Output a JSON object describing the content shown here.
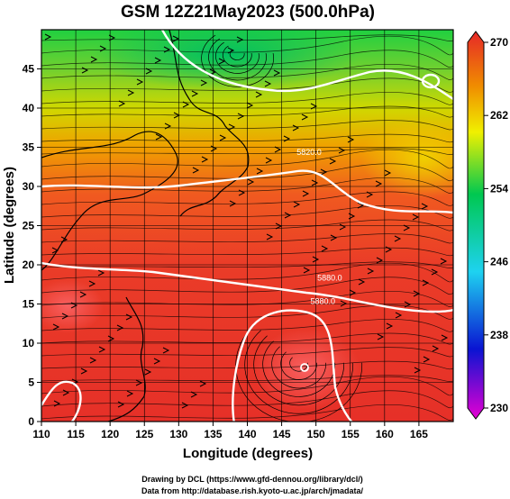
{
  "chart_data": {
    "type": "heatmap",
    "title": "GSM 12Z21May2023 (500.0hPa)",
    "xlabel": "Longitude (degrees)",
    "ylabel": "Latitude  (degrees)",
    "xlim": [
      110,
      170
    ],
    "ylim": [
      0,
      50
    ],
    "x_ticks": [
      110,
      115,
      120,
      125,
      130,
      135,
      140,
      145,
      150,
      155,
      160,
      165
    ],
    "y_ticks": [
      0,
      5,
      10,
      15,
      20,
      25,
      30,
      35,
      40,
      45
    ],
    "grid": true,
    "colorbar": {
      "min": 230,
      "max": 270,
      "ticks": [
        230,
        238,
        246,
        254,
        262,
        270
      ],
      "colors": [
        "#e600d2",
        "#0a14d2",
        "#1ed2f0",
        "#00c850",
        "#f0f000",
        "#f08c00",
        "#e62828"
      ]
    },
    "contour_labels": [
      {
        "text": "5820.0",
        "lon": 149.0,
        "lat": 34.0
      },
      {
        "text": "5880.0",
        "lon": 152.0,
        "lat": 18.0
      },
      {
        "text": "5880.0",
        "lon": 151.0,
        "lat": 15.0
      }
    ],
    "features": {
      "typhoon_center": {
        "lon": 147.5,
        "lat": 7.5
      },
      "low_center": {
        "lon": 138.5,
        "lat": 47.0
      },
      "high_center": {
        "lon": 165.5,
        "lat": 45.5
      }
    }
  },
  "credits": {
    "line1": "Drawing by DCL (https://www.gfd-dennou.org/library/dcl/)",
    "line2": "Data from http://database.rish.kyoto-u.ac.jp/arch/jmadata/"
  }
}
